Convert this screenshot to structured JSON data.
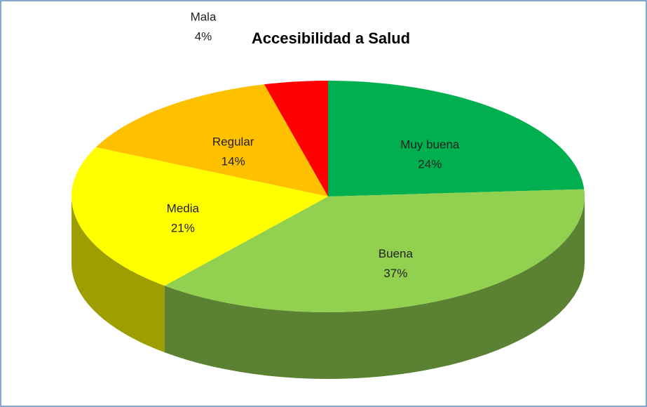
{
  "chart_data": {
    "type": "pie",
    "title": "Accesibilidad a Salud",
    "categories": [
      "Muy buena",
      "Buena",
      "Media",
      "Regular",
      "Mala"
    ],
    "values": [
      24,
      37,
      21,
      14,
      4
    ],
    "value_labels": [
      "24%",
      "37%",
      "21%",
      "14%",
      "4%"
    ],
    "colors": [
      "#00b050",
      "#92d050",
      "#ffff00",
      "#ffc000",
      "#ff0000"
    ]
  }
}
